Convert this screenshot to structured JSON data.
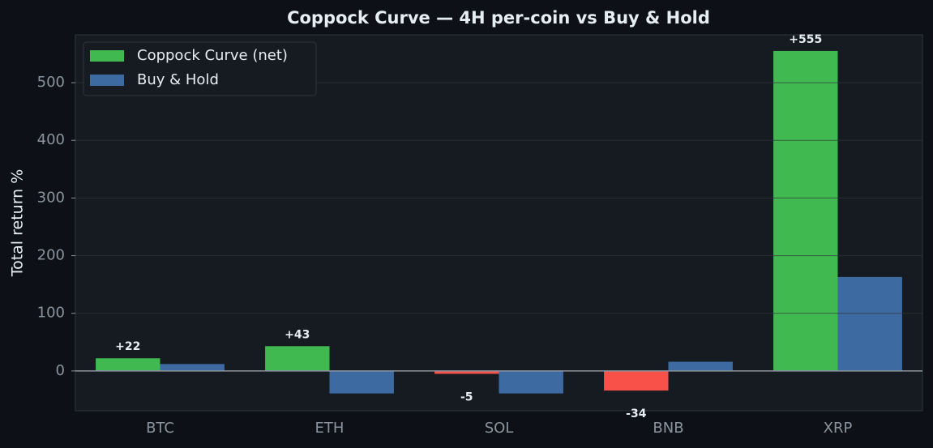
{
  "chart_data": {
    "type": "bar",
    "title": "Coppock Curve — 4H per-coin vs Buy & Hold",
    "y_label": "Total return %",
    "categories": [
      "BTC",
      "ETH",
      "SOL",
      "BNB",
      "XRP"
    ],
    "series": [
      {
        "name": "Coppock Curve (net)",
        "color": "#3fb950",
        "negative_color": "#f85149",
        "values": [
          22,
          43,
          -5,
          -34,
          555
        ],
        "value_labels": [
          "+22",
          "+43",
          "-5",
          "-34",
          "+555"
        ]
      },
      {
        "name": "Buy & Hold",
        "color": "#3d6aa0",
        "values": [
          12,
          -39,
          -39,
          16,
          163
        ]
      }
    ],
    "ylim": [
      -69,
      583
    ],
    "yticks": [
      0,
      100,
      200,
      300,
      400,
      500
    ],
    "grid": true,
    "legend": "upper-left"
  }
}
